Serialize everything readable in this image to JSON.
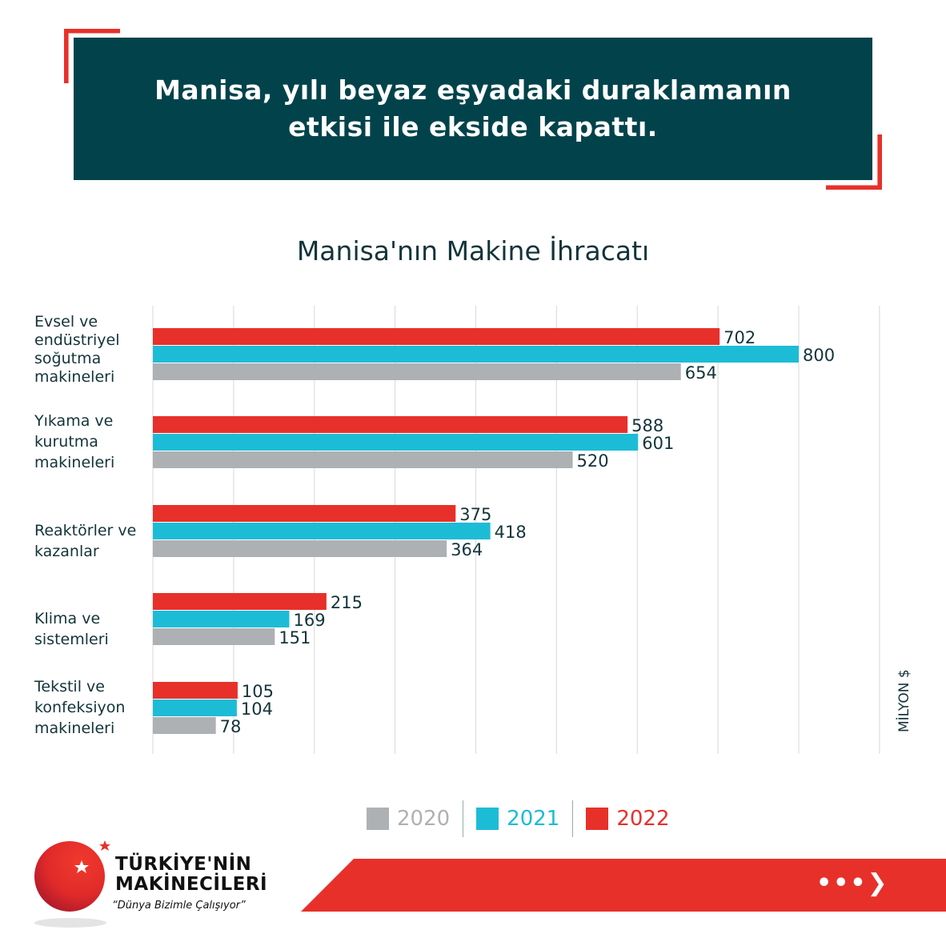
{
  "banner": {
    "title": "Manisa, yılı beyaz eşyadaki duraklamanın etkisi ile ekside kapattı."
  },
  "colors": {
    "2020": "#aeb1b4",
    "2021": "#1dbcd6",
    "2022": "#e8302a",
    "dark": "#02434b"
  },
  "chart_data": {
    "type": "bar",
    "orientation": "horizontal",
    "title": "Manisa'nın Makine İhracatı",
    "unit_label": "MİLYON $",
    "xlim": [
      0,
      900
    ],
    "grid": true,
    "legend_position": "bottom",
    "categories": [
      "Evsel ve endüstriyel soğutma makineleri",
      "Yıkama ve kurutma makineleri",
      "Reaktörler ve kazanlar",
      "Klima ve sistemleri",
      "Tekstil ve konfeksiyon makineleri"
    ],
    "series": [
      {
        "name": "2022",
        "values": [
          702,
          588,
          375,
          215,
          105
        ]
      },
      {
        "name": "2021",
        "values": [
          800,
          601,
          418,
          169,
          104
        ]
      },
      {
        "name": "2020",
        "values": [
          654,
          520,
          364,
          151,
          78
        ]
      }
    ],
    "legend": [
      "2020",
      "2021",
      "2022"
    ]
  },
  "logo": {
    "title_line1": "TÜRKİYE'NİN",
    "title_line2": "MAKİNECİLERİ",
    "slogan": "“Dünya Bizimle Çalışıyor”"
  },
  "footer": {
    "next_label": "•••❯"
  }
}
